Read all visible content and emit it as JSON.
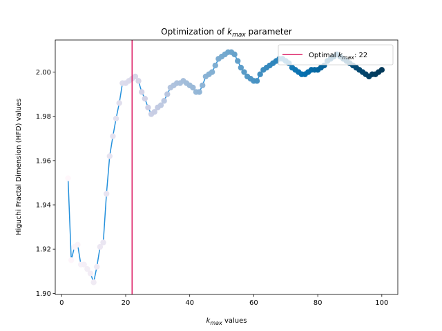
{
  "chart_data": {
    "type": "line",
    "title": "Optimization of k_max parameter",
    "title_parts": {
      "pre": "Optimization of ",
      "k": "k",
      "sub": "max",
      "post": " parameter"
    },
    "xlabel_parts": {
      "k": "k",
      "sub": "max",
      "post": " values"
    },
    "ylabel": "Higuchi Fractal Dimension (HFD) values",
    "xlim": [
      -2,
      105
    ],
    "ylim": [
      1.8995,
      2.0145
    ],
    "xticks": [
      0,
      20,
      40,
      60,
      80,
      100
    ],
    "yticks": [
      1.9,
      1.92,
      1.94,
      1.96,
      1.98,
      2.0
    ],
    "ytick_labels": [
      "1.90",
      "1.92",
      "1.94",
      "1.96",
      "1.98",
      "2.00"
    ],
    "grid": false,
    "legend_position": "top-right",
    "legend": {
      "pre": "Optimal ",
      "k": "k",
      "sub": "max",
      "post": ": 22"
    },
    "line_color": "#2390dc",
    "optimal_color": "#dc1c64",
    "optimal_k": 22,
    "colormap": "PuBu",
    "series": [
      {
        "x": [
          2,
          3,
          4,
          5,
          6,
          7,
          8,
          9,
          10,
          11,
          12,
          13,
          14,
          15,
          16,
          17,
          18,
          19,
          20,
          21,
          22,
          23,
          24,
          25,
          26,
          27,
          28,
          29,
          30,
          31,
          32,
          33,
          34,
          35,
          36,
          37,
          38,
          39,
          40,
          41,
          42,
          43,
          44,
          45,
          46,
          47,
          48,
          49,
          50,
          51,
          52,
          53,
          54,
          55,
          56,
          57,
          58,
          59,
          60,
          61,
          62,
          63,
          64,
          65,
          66,
          67,
          68,
          69,
          70,
          71,
          72,
          73,
          74,
          75,
          76,
          77,
          78,
          79,
          80,
          81,
          82,
          83,
          84,
          85,
          86,
          87,
          88,
          89,
          90,
          91,
          92,
          93,
          94,
          95,
          96,
          97,
          98,
          99,
          100
        ],
        "y": [
          1.952,
          1.915,
          1.921,
          1.922,
          1.913,
          1.913,
          1.911,
          1.909,
          1.905,
          1.912,
          1.921,
          1.923,
          1.945,
          1.962,
          1.971,
          1.979,
          1.986,
          1.995,
          1.995,
          1.996,
          1.997,
          1.998,
          1.996,
          1.991,
          1.988,
          1.984,
          1.981,
          1.982,
          1.984,
          1.985,
          1.987,
          1.99,
          1.993,
          1.994,
          1.995,
          1.995,
          1.996,
          1.995,
          1.994,
          1.993,
          1.991,
          1.991,
          1.994,
          1.998,
          1.999,
          2.0,
          2.003,
          2.006,
          2.007,
          2.008,
          2.009,
          2.009,
          2.008,
          2.005,
          2.002,
          2.0,
          1.998,
          1.997,
          1.996,
          1.996,
          1.999,
          2.001,
          2.002,
          2.003,
          2.004,
          2.005,
          2.006,
          2.006,
          2.005,
          2.004,
          2.002,
          2.001,
          2.0,
          1.999,
          1.999,
          2.0,
          2.001,
          2.001,
          2.001,
          2.002,
          2.003,
          2.005,
          2.006,
          2.007,
          2.008,
          2.007,
          2.006,
          2.005,
          2.004,
          2.003,
          2.002,
          2.001,
          2.0,
          1.999,
          1.998,
          1.999,
          1.999,
          2.0,
          2.001
        ]
      }
    ]
  }
}
